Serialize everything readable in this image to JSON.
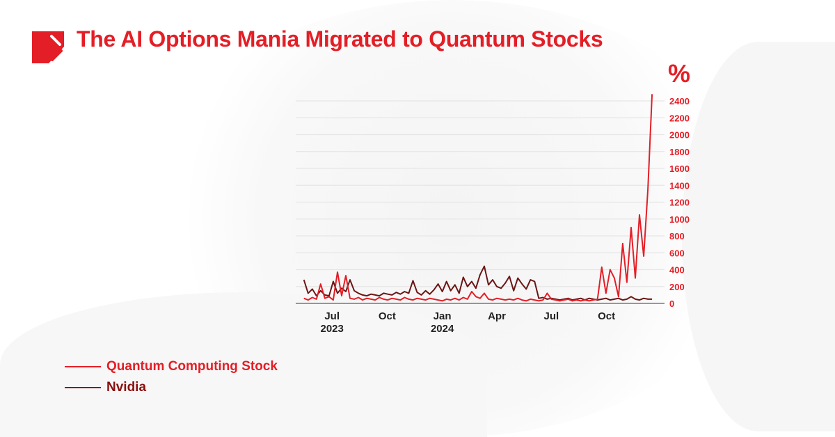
{
  "title": "The AI Options Mania Migrated to Quantum Stocks",
  "colors": {
    "accent": "#e41e26",
    "quantum": "#e41e26",
    "nvidia": "#6b1515",
    "nvidia_legend": "#8b0f0f"
  },
  "chart_data": {
    "type": "line",
    "title": "The AI Options Mania Migrated to Quantum Stocks",
    "ylabel": "%",
    "ylim": [
      0,
      2500
    ],
    "yticks": [
      0,
      200,
      400,
      600,
      800,
      1000,
      1200,
      1400,
      1600,
      1800,
      2000,
      2200,
      2400
    ],
    "xlim": [
      "2023-05-20",
      "2024-12-31"
    ],
    "xticks": [
      {
        "date": "2023-07-01",
        "label": "Jul",
        "sub": "2023"
      },
      {
        "date": "2023-10-01",
        "label": "Oct",
        "sub": ""
      },
      {
        "date": "2024-01-01",
        "label": "Jan",
        "sub": "2024"
      },
      {
        "date": "2024-04-01",
        "label": "Apr",
        "sub": ""
      },
      {
        "date": "2024-07-01",
        "label": "Jul",
        "sub": ""
      },
      {
        "date": "2024-10-01",
        "label": "Oct",
        "sub": ""
      }
    ],
    "grid": true,
    "legend_position": "bottom-left",
    "x": [
      "2023-05-22",
      "2023-05-29",
      "2023-06-05",
      "2023-06-12",
      "2023-06-19",
      "2023-06-26",
      "2023-07-03",
      "2023-07-10",
      "2023-07-17",
      "2023-07-24",
      "2023-07-31",
      "2023-08-07",
      "2023-08-14",
      "2023-08-21",
      "2023-08-28",
      "2023-09-04",
      "2023-09-11",
      "2023-09-18",
      "2023-09-25",
      "2023-10-02",
      "2023-10-09",
      "2023-10-16",
      "2023-10-23",
      "2023-10-30",
      "2023-11-06",
      "2023-11-13",
      "2023-11-20",
      "2023-11-27",
      "2023-12-04",
      "2023-12-11",
      "2023-12-18",
      "2023-12-25",
      "2024-01-01",
      "2024-01-08",
      "2024-01-15",
      "2024-01-22",
      "2024-01-29",
      "2024-02-05",
      "2024-02-12",
      "2024-02-19",
      "2024-02-26",
      "2024-03-04",
      "2024-03-11",
      "2024-03-18",
      "2024-03-25",
      "2024-04-01",
      "2024-04-08",
      "2024-04-15",
      "2024-04-22",
      "2024-04-29",
      "2024-05-06",
      "2024-05-13",
      "2024-05-20",
      "2024-05-27",
      "2024-06-03",
      "2024-06-10",
      "2024-06-17",
      "2024-06-24",
      "2024-07-01",
      "2024-07-08",
      "2024-07-15",
      "2024-07-22",
      "2024-07-29",
      "2024-08-05",
      "2024-08-12",
      "2024-08-19",
      "2024-08-26",
      "2024-09-02",
      "2024-09-09",
      "2024-09-16",
      "2024-09-23",
      "2024-09-30",
      "2024-10-07",
      "2024-10-14",
      "2024-10-21",
      "2024-10-28",
      "2024-11-04",
      "2024-11-11",
      "2024-11-18",
      "2024-11-25",
      "2024-12-02",
      "2024-12-09",
      "2024-12-16",
      "2024-12-23"
    ],
    "series": [
      {
        "name": "Nvidia",
        "color": "#6b1515",
        "values": [
          280,
          120,
          170,
          90,
          150,
          100,
          90,
          260,
          120,
          180,
          140,
          280,
          150,
          120,
          100,
          90,
          110,
          100,
          90,
          120,
          110,
          100,
          130,
          110,
          140,
          120,
          270,
          130,
          100,
          150,
          110,
          160,
          230,
          140,
          260,
          150,
          220,
          120,
          310,
          200,
          260,
          180,
          340,
          440,
          220,
          280,
          200,
          180,
          240,
          320,
          150,
          300,
          230,
          170,
          280,
          260,
          60,
          70,
          50,
          60,
          50,
          40,
          50,
          60,
          40,
          50,
          60,
          40,
          60,
          50,
          40,
          50,
          60,
          40,
          50,
          60,
          40,
          50,
          80,
          50,
          40,
          60,
          50,
          50
        ]
      },
      {
        "name": "Quantum Computing Stock",
        "color": "#e41e26",
        "values": [
          60,
          40,
          70,
          50,
          230,
          60,
          80,
          40,
          370,
          90,
          330,
          60,
          50,
          70,
          40,
          60,
          50,
          40,
          70,
          50,
          40,
          60,
          50,
          40,
          70,
          50,
          40,
          60,
          50,
          40,
          60,
          50,
          40,
          30,
          50,
          40,
          60,
          40,
          70,
          50,
          140,
          80,
          60,
          120,
          50,
          40,
          60,
          50,
          40,
          50,
          40,
          60,
          40,
          30,
          50,
          40,
          30,
          40,
          120,
          50,
          40,
          30,
          40,
          50,
          30,
          40,
          30,
          40,
          30,
          40,
          50,
          430,
          120,
          400,
          300,
          80,
          710,
          250,
          900,
          300,
          1050,
          560,
          1350,
          2480
        ]
      }
    ]
  },
  "legend": [
    {
      "label": "Quantum Computing Stock",
      "color": "#e41e26"
    },
    {
      "label": "Nvidia",
      "color": "#8b0f0f"
    }
  ]
}
